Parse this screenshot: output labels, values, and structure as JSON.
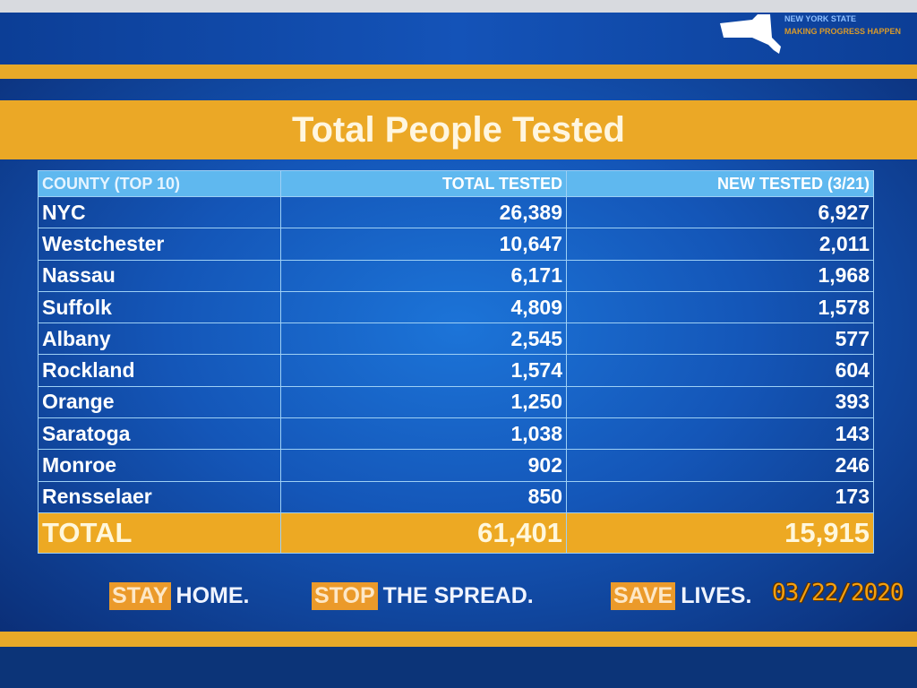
{
  "logo": {
    "line1": "NEW YORK STATE",
    "line2": "MAKING PROGRESS HAPPEN"
  },
  "title": "Total People Tested",
  "chart_data": {
    "type": "table",
    "title": "Total People Tested",
    "columns": [
      "COUNTY (TOP 10)",
      "TOTAL TESTED",
      "NEW TESTED (3/21)"
    ],
    "rows": [
      [
        "NYC",
        "26,389",
        "6,927"
      ],
      [
        "Westchester",
        "10,647",
        "2,011"
      ],
      [
        "Nassau",
        "6,171",
        "1,968"
      ],
      [
        "Suffolk",
        "4,809",
        "1,578"
      ],
      [
        "Albany",
        "2,545",
        "577"
      ],
      [
        "Rockland",
        "1,574",
        "604"
      ],
      [
        "Orange",
        "1,250",
        "393"
      ],
      [
        "Saratoga",
        "1,038",
        "143"
      ],
      [
        "Monroe",
        "902",
        "246"
      ],
      [
        "Rensselaer",
        "850",
        "173"
      ]
    ],
    "total": [
      "TOTAL",
      "61,401",
      "15,915"
    ]
  },
  "slogan": [
    {
      "highlight": "STAY",
      "rest": "HOME."
    },
    {
      "highlight": "STOP",
      "rest": "THE SPREAD."
    },
    {
      "highlight": "SAVE",
      "rest": "LIVES."
    }
  ],
  "date_stamp": "03/22/2020",
  "colors": {
    "orange": "#eba826",
    "blue": "#1456b8",
    "header": "#5fb8ef",
    "date": "#f4a010"
  }
}
